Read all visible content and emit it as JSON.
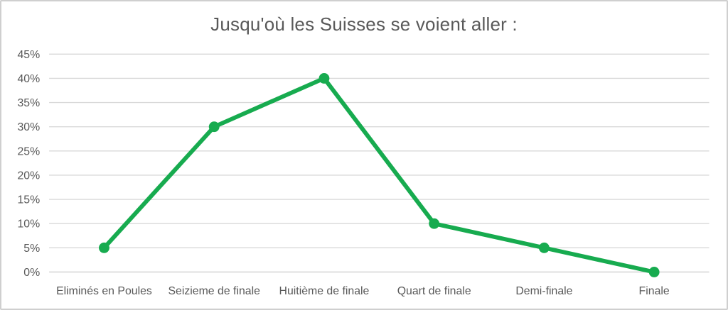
{
  "chart_data": {
    "type": "line",
    "title": "Jusqu'où les Suisses se voient aller :",
    "categories": [
      "Eliminés en Poules",
      "Seizieme de finale",
      "Huitième de finale",
      "Quart de finale",
      "Demi-finale",
      "Finale"
    ],
    "values": [
      5,
      30,
      40,
      10,
      5,
      0
    ],
    "unit": "%",
    "ylim": [
      0,
      45
    ],
    "ytick_step": 5,
    "ytick_labels": [
      "0%",
      "5%",
      "10%",
      "15%",
      "20%",
      "25%",
      "30%",
      "35%",
      "40%",
      "45%"
    ],
    "grid": true,
    "legend_position": "none",
    "colors": {
      "line": "#17ab4f",
      "marker": "#17ab4f",
      "grid": "#d9d9d9",
      "baseline": "#cfcfcf",
      "text": "#595959",
      "frame_border": "#cfcfcf",
      "background": "#ffffff"
    }
  }
}
